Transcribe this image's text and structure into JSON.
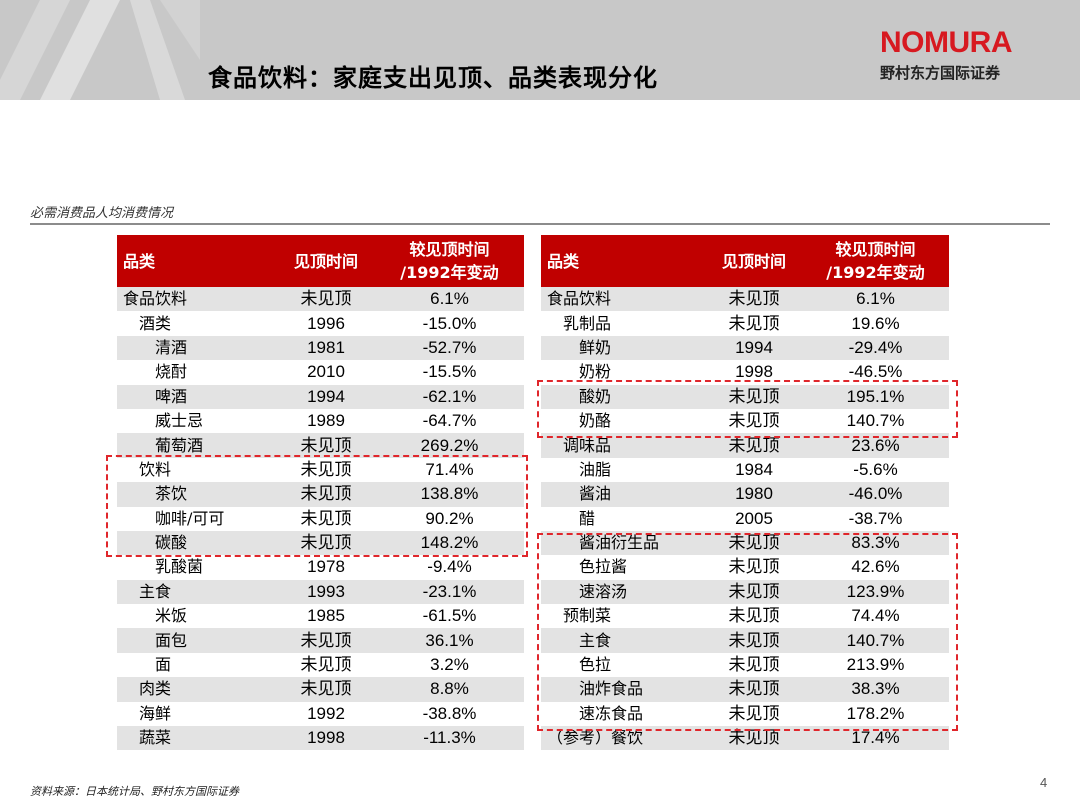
{
  "header": {
    "title": "食品饮料：家庭支出见顶、品类表现分化",
    "logo_word": "NOMURA",
    "logo_sub": "野村东方国际证券",
    "brand_color": "#d71920"
  },
  "section": {
    "label": "必需消费品人均消费情况"
  },
  "table_left": {
    "headers": [
      "品类",
      "见顶时间",
      "较见顶时间",
      "/1992年变动"
    ],
    "rows": [
      {
        "category": "食品饮料",
        "level": 0,
        "peak": "未见顶",
        "change": "6.1%"
      },
      {
        "category": "酒类",
        "level": 1,
        "peak": "1996",
        "change": "-15.0%"
      },
      {
        "category": "清酒",
        "level": 2,
        "peak": "1981",
        "change": "-52.7%"
      },
      {
        "category": "烧酎",
        "level": 2,
        "peak": "2010",
        "change": "-15.5%"
      },
      {
        "category": "啤酒",
        "level": 2,
        "peak": "1994",
        "change": "-62.1%"
      },
      {
        "category": "威士忌",
        "level": 2,
        "peak": "1989",
        "change": "-64.7%"
      },
      {
        "category": "葡萄酒",
        "level": 2,
        "peak": "未见顶",
        "change": "269.2%"
      },
      {
        "category": "饮料",
        "level": 1,
        "peak": "未见顶",
        "change": "71.4%"
      },
      {
        "category": "茶饮",
        "level": 2,
        "peak": "未见顶",
        "change": "138.8%"
      },
      {
        "category": "咖啡/可可",
        "level": 2,
        "peak": "未见顶",
        "change": "90.2%"
      },
      {
        "category": "碳酸",
        "level": 2,
        "peak": "未见顶",
        "change": "148.2%"
      },
      {
        "category": "乳酸菌",
        "level": 2,
        "peak": "1978",
        "change": "-9.4%"
      },
      {
        "category": "主食",
        "level": 1,
        "peak": "1993",
        "change": "-23.1%"
      },
      {
        "category": "米饭",
        "level": 2,
        "peak": "1985",
        "change": "-61.5%"
      },
      {
        "category": "面包",
        "level": 2,
        "peak": "未见顶",
        "change": "36.1%"
      },
      {
        "category": "面",
        "level": 2,
        "peak": "未见顶",
        "change": "3.2%"
      },
      {
        "category": "肉类",
        "level": 1,
        "peak": "未见顶",
        "change": "8.8%"
      },
      {
        "category": "海鲜",
        "level": 1,
        "peak": "1992",
        "change": "-38.8%"
      },
      {
        "category": "蔬菜",
        "level": 1,
        "peak": "1998",
        "change": "-11.3%"
      }
    ]
  },
  "table_right": {
    "headers": [
      "品类",
      "见顶时间",
      "较见顶时间",
      "/1992年变动"
    ],
    "rows": [
      {
        "category": "食品饮料",
        "level": 0,
        "peak": "未见顶",
        "change": "6.1%"
      },
      {
        "category": "乳制品",
        "level": 1,
        "peak": "未见顶",
        "change": "19.6%"
      },
      {
        "category": "鲜奶",
        "level": 2,
        "peak": "1994",
        "change": "-29.4%"
      },
      {
        "category": "奶粉",
        "level": 2,
        "peak": "1998",
        "change": "-46.5%"
      },
      {
        "category": "酸奶",
        "level": 2,
        "peak": "未见顶",
        "change": "195.1%"
      },
      {
        "category": "奶酪",
        "level": 2,
        "peak": "未见顶",
        "change": "140.7%"
      },
      {
        "category": "调味品",
        "level": 1,
        "peak": "未见顶",
        "change": "23.6%"
      },
      {
        "category": "油脂",
        "level": 2,
        "peak": "1984",
        "change": "-5.6%"
      },
      {
        "category": "酱油",
        "level": 2,
        "peak": "1980",
        "change": "-46.0%"
      },
      {
        "category": "醋",
        "level": 2,
        "peak": "2005",
        "change": "-38.7%"
      },
      {
        "category": "酱油衍生品",
        "level": 2,
        "peak": "未见顶",
        "change": "83.3%"
      },
      {
        "category": "色拉酱",
        "level": 2,
        "peak": "未见顶",
        "change": "42.6%"
      },
      {
        "category": "速溶汤",
        "level": 2,
        "peak": "未见顶",
        "change": "123.9%"
      },
      {
        "category": "预制菜",
        "level": 1,
        "peak": "未见顶",
        "change": "74.4%"
      },
      {
        "category": "主食",
        "level": 2,
        "peak": "未见顶",
        "change": "140.7%"
      },
      {
        "category": "色拉",
        "level": 2,
        "peak": "未见顶",
        "change": "213.9%"
      },
      {
        "category": "油炸食品",
        "level": 2,
        "peak": "未见顶",
        "change": "38.3%"
      },
      {
        "category": "速冻食品",
        "level": 2,
        "peak": "未见顶",
        "change": "178.2%"
      },
      {
        "category": "（参考）餐饮",
        "level": 0,
        "peak": "未见顶",
        "change": "17.4%"
      }
    ]
  },
  "footer": {
    "source": "资料来源：日本统计局、野村东方国际证券",
    "page_number": "4"
  },
  "colors": {
    "header_band": "#c8c8c8",
    "table_header": "#c00000",
    "row_stripe": "#e3e3e3",
    "highlight_dash": "#e0262b"
  }
}
